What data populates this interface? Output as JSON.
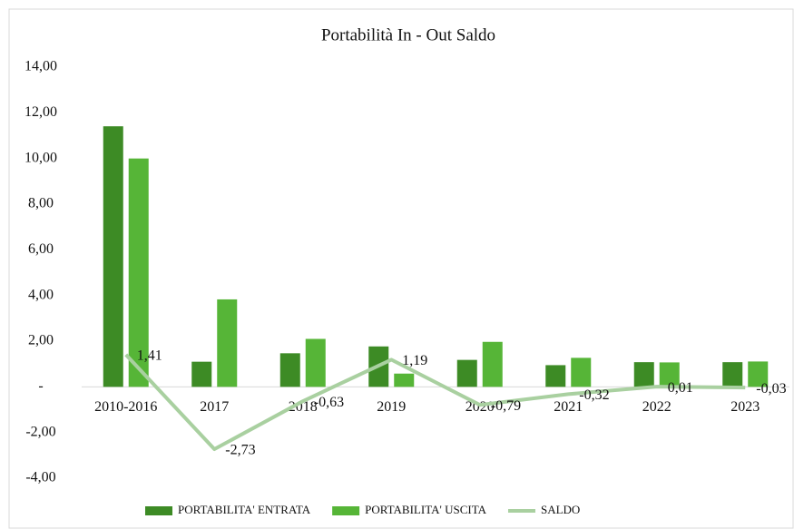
{
  "chart_data": {
    "type": "bar_line",
    "title": "Portabilità In - Out Saldo",
    "categories": [
      "2010-2016",
      "2017",
      "2018",
      "2019",
      "2020",
      "2021",
      "2022",
      "2023"
    ],
    "series": [
      {
        "name": "PORTABILITA' ENTRATA",
        "type": "bar",
        "color": "#3d8b25",
        "values": [
          11.41,
          1.1,
          1.47,
          1.77,
          1.18,
          0.95,
          1.08,
          1.08
        ]
      },
      {
        "name": "PORTABILITA' USCITA",
        "type": "bar",
        "color": "#56b537",
        "values": [
          10.0,
          3.83,
          2.1,
          0.58,
          1.97,
          1.27,
          1.07,
          1.11
        ]
      },
      {
        "name": "SALDO",
        "type": "line",
        "color": "#a9d0a0",
        "values": [
          1.41,
          -2.73,
          -0.63,
          1.19,
          -0.79,
          -0.32,
          0.01,
          -0.03
        ],
        "value_labels": [
          "1,41",
          "-2,73",
          "-0,63",
          "1,19",
          "-0,79",
          "-0,32",
          "0,01",
          "-0,03"
        ]
      }
    ],
    "ylim": [
      -4,
      14
    ],
    "yticks": [
      {
        "value": -4,
        "label": "-4,00"
      },
      {
        "value": -2,
        "label": "-2,00"
      },
      {
        "value": 0,
        "label": "-"
      },
      {
        "value": 2,
        "label": "2,00"
      },
      {
        "value": 4,
        "label": "4,00"
      },
      {
        "value": 6,
        "label": "6,00"
      },
      {
        "value": 8,
        "label": "8,00"
      },
      {
        "value": 10,
        "label": "10,00"
      },
      {
        "value": 12,
        "label": "12,00"
      },
      {
        "value": 14,
        "label": "14,00"
      }
    ],
    "legend": "bottom"
  }
}
